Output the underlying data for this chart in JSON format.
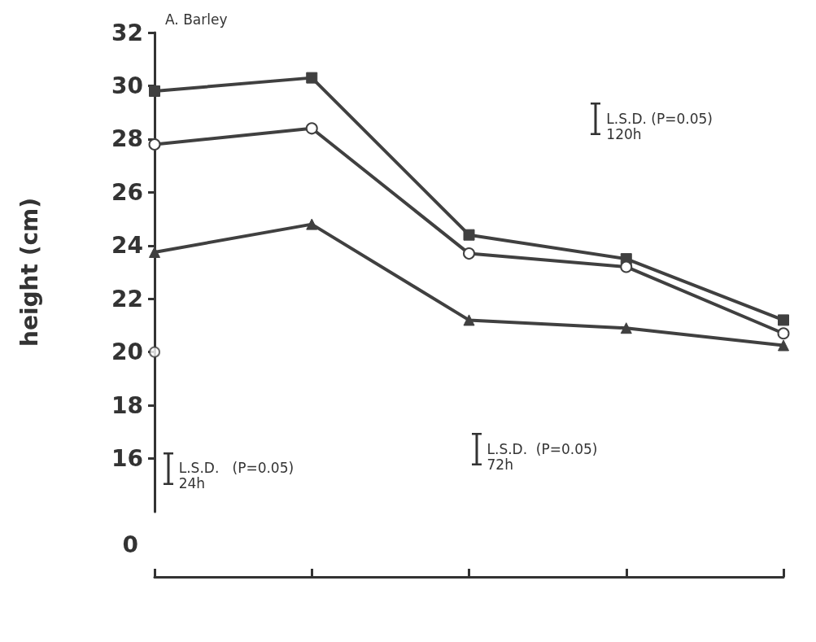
{
  "chart_data": {
    "type": "line",
    "title": "A. Barley",
    "ylabel": "height (cm)",
    "categories": [
      null,
      null,
      null,
      null,
      null
    ],
    "ylim": [
      14,
      32
    ],
    "yticks": [
      16,
      18,
      20,
      22,
      24,
      26,
      28,
      30,
      32
    ],
    "tick_labels": "y",
    "grid": false,
    "line_style": "solid",
    "series": [
      {
        "marker": "square",
        "color": "#404040",
        "values": [
          29.8,
          30.3,
          24.4,
          23.5,
          21.2
        ]
      },
      {
        "marker": "circle",
        "color": "#404040",
        "values": [
          27.8,
          28.4,
          23.7,
          23.2,
          20.7
        ]
      },
      {
        "marker": "triangle",
        "color": "#404040",
        "values": [
          23.75,
          24.8,
          21.2,
          20.9,
          20.25
        ]
      },
      {
        "type": "scatter",
        "marker": "circle",
        "color": "#404040",
        "values": [
          20.0,
          null,
          null,
          null,
          null
        ]
      }
    ],
    "annotations": [
      "L.S.D.   (P=0.05)\n24h",
      "L.S.D.  (P=0.05)\n72h",
      "L.S.D. (P=0.05)\n120h",
      "0"
    ]
  }
}
